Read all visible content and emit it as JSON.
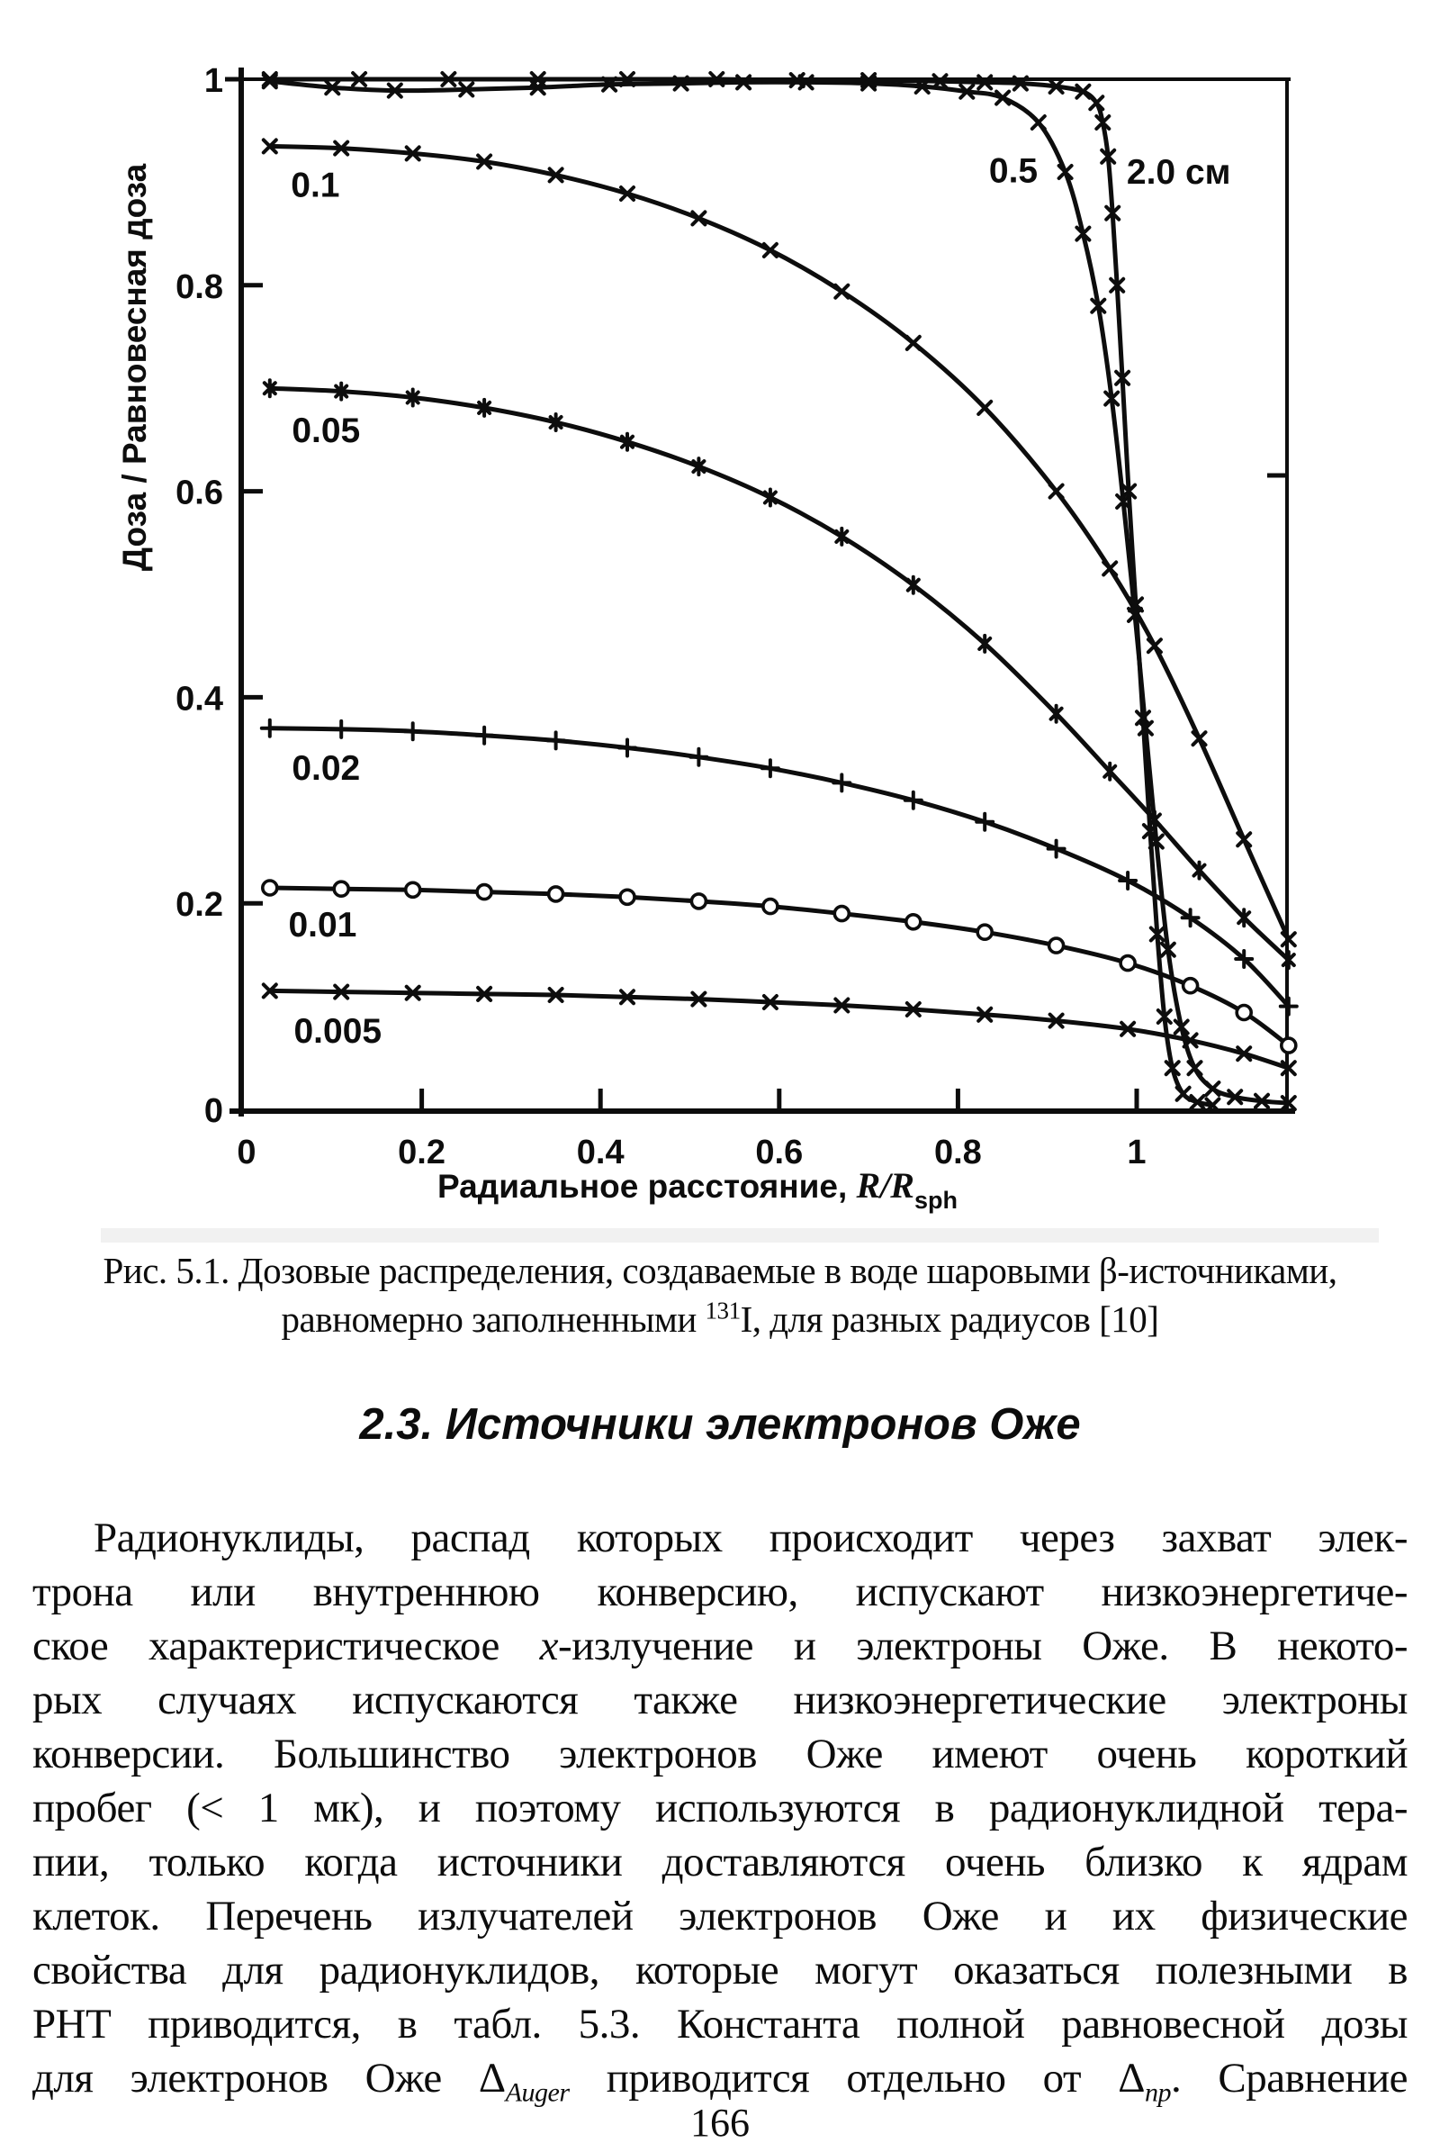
{
  "chart_data": {
    "type": "line",
    "title": "",
    "ylabel": "Доза / Равновесная доза",
    "xlabel_text": "Радиальное расстояние, ",
    "xlabel_math": "R/R",
    "xlabel_sub": "sph",
    "xlim": [
      0,
      1.17
    ],
    "ylim": [
      0,
      1.0
    ],
    "grid": false,
    "legend_position": "inline-labels",
    "x_ticks": [
      {
        "v": 0,
        "label": "0"
      },
      {
        "v": 0.2,
        "label": "0.2"
      },
      {
        "v": 0.4,
        "label": "0.4"
      },
      {
        "v": 0.6,
        "label": "0.6"
      },
      {
        "v": 0.8,
        "label": "0.8"
      },
      {
        "v": 1,
        "label": "1"
      }
    ],
    "y_ticks": [
      {
        "v": 0,
        "label": "0"
      },
      {
        "v": 0.2,
        "label": "0.2"
      },
      {
        "v": 0.4,
        "label": "0.4"
      },
      {
        "v": 0.6,
        "label": "0.6"
      },
      {
        "v": 0.8,
        "label": "0.8"
      },
      {
        "v": 1,
        "label": "1"
      }
    ],
    "series": [
      {
        "name": "0.005",
        "marker": "x",
        "points": [
          [
            0.03,
            0.115
          ],
          [
            0.11,
            0.114
          ],
          [
            0.19,
            0.113
          ],
          [
            0.27,
            0.112
          ],
          [
            0.35,
            0.111
          ],
          [
            0.43,
            0.109
          ],
          [
            0.51,
            0.107
          ],
          [
            0.59,
            0.104
          ],
          [
            0.67,
            0.101
          ],
          [
            0.75,
            0.097
          ],
          [
            0.83,
            0.092
          ],
          [
            0.91,
            0.086
          ],
          [
            0.99,
            0.078
          ],
          [
            1.06,
            0.067
          ],
          [
            1.12,
            0.054
          ],
          [
            1.17,
            0.04
          ]
        ]
      },
      {
        "name": "0.01",
        "marker": "circle",
        "points": [
          [
            0.03,
            0.215
          ],
          [
            0.11,
            0.214
          ],
          [
            0.19,
            0.213
          ],
          [
            0.27,
            0.211
          ],
          [
            0.35,
            0.209
          ],
          [
            0.43,
            0.206
          ],
          [
            0.51,
            0.202
          ],
          [
            0.59,
            0.197
          ],
          [
            0.67,
            0.19
          ],
          [
            0.75,
            0.182
          ],
          [
            0.83,
            0.172
          ],
          [
            0.91,
            0.159
          ],
          [
            0.99,
            0.142
          ],
          [
            1.06,
            0.12
          ],
          [
            1.12,
            0.094
          ],
          [
            1.17,
            0.062
          ]
        ]
      },
      {
        "name": "0.02",
        "marker": "plus",
        "points": [
          [
            0.03,
            0.37
          ],
          [
            0.11,
            0.369
          ],
          [
            0.19,
            0.367
          ],
          [
            0.27,
            0.363
          ],
          [
            0.35,
            0.358
          ],
          [
            0.43,
            0.351
          ],
          [
            0.51,
            0.342
          ],
          [
            0.59,
            0.331
          ],
          [
            0.67,
            0.317
          ],
          [
            0.75,
            0.3
          ],
          [
            0.83,
            0.279
          ],
          [
            0.91,
            0.253
          ],
          [
            0.99,
            0.222
          ],
          [
            1.06,
            0.186
          ],
          [
            1.12,
            0.146
          ],
          [
            1.17,
            0.1
          ]
        ]
      },
      {
        "name": "0.05",
        "marker": "asterisk",
        "points": [
          [
            0.03,
            0.7
          ],
          [
            0.11,
            0.697
          ],
          [
            0.19,
            0.691
          ],
          [
            0.27,
            0.681
          ],
          [
            0.35,
            0.667
          ],
          [
            0.43,
            0.648
          ],
          [
            0.51,
            0.624
          ],
          [
            0.59,
            0.594
          ],
          [
            0.67,
            0.556
          ],
          [
            0.75,
            0.509
          ],
          [
            0.83,
            0.452
          ],
          [
            0.91,
            0.384
          ],
          [
            0.97,
            0.328
          ],
          [
            1.02,
            0.281
          ],
          [
            1.07,
            0.232
          ],
          [
            1.12,
            0.186
          ],
          [
            1.17,
            0.145
          ]
        ]
      },
      {
        "name": "0.1",
        "marker": "x",
        "points": [
          [
            0.03,
            0.935
          ],
          [
            0.11,
            0.933
          ],
          [
            0.19,
            0.928
          ],
          [
            0.27,
            0.92
          ],
          [
            0.35,
            0.907
          ],
          [
            0.43,
            0.889
          ],
          [
            0.51,
            0.865
          ],
          [
            0.59,
            0.834
          ],
          [
            0.67,
            0.794
          ],
          [
            0.75,
            0.744
          ],
          [
            0.83,
            0.681
          ],
          [
            0.91,
            0.6
          ],
          [
            0.97,
            0.525
          ],
          [
            1.02,
            0.45
          ],
          [
            1.07,
            0.36
          ],
          [
            1.12,
            0.262
          ],
          [
            1.17,
            0.165
          ]
        ]
      },
      {
        "name": "0.5",
        "marker": "x",
        "points": [
          [
            0.03,
            0.998
          ],
          [
            0.1,
            0.992
          ],
          [
            0.17,
            0.989
          ],
          [
            0.25,
            0.99
          ],
          [
            0.33,
            0.992
          ],
          [
            0.41,
            0.995
          ],
          [
            0.49,
            0.996
          ],
          [
            0.56,
            0.997
          ],
          [
            0.63,
            0.997
          ],
          [
            0.7,
            0.996
          ],
          [
            0.76,
            0.993
          ],
          [
            0.81,
            0.988
          ],
          [
            0.85,
            0.982
          ],
          [
            0.89,
            0.958
          ],
          [
            0.92,
            0.91
          ],
          [
            0.94,
            0.85
          ],
          [
            0.957,
            0.78
          ],
          [
            0.972,
            0.69
          ],
          [
            0.985,
            0.59
          ],
          [
            0.998,
            0.48
          ],
          [
            1.01,
            0.37
          ],
          [
            1.022,
            0.26
          ],
          [
            1.035,
            0.155
          ],
          [
            1.05,
            0.08
          ],
          [
            1.065,
            0.04
          ],
          [
            1.085,
            0.02
          ],
          [
            1.11,
            0.012
          ],
          [
            1.14,
            0.008
          ],
          [
            1.17,
            0.006
          ]
        ]
      },
      {
        "name": "2.0 см",
        "marker": "x",
        "points": [
          [
            0.03,
            1.0
          ],
          [
            0.13,
            1.0
          ],
          [
            0.23,
            1.0
          ],
          [
            0.33,
            1.0
          ],
          [
            0.43,
            1.0
          ],
          [
            0.53,
            1.0
          ],
          [
            0.62,
            0.999
          ],
          [
            0.7,
            0.999
          ],
          [
            0.78,
            0.998
          ],
          [
            0.83,
            0.997
          ],
          [
            0.87,
            0.996
          ],
          [
            0.91,
            0.993
          ],
          [
            0.94,
            0.988
          ],
          [
            0.955,
            0.977
          ],
          [
            0.962,
            0.958
          ],
          [
            0.968,
            0.925
          ],
          [
            0.973,
            0.87
          ],
          [
            0.978,
            0.8
          ],
          [
            0.984,
            0.71
          ],
          [
            0.991,
            0.6
          ],
          [
            0.999,
            0.49
          ],
          [
            1.007,
            0.38
          ],
          [
            1.015,
            0.27
          ],
          [
            1.023,
            0.17
          ],
          [
            1.031,
            0.09
          ],
          [
            1.04,
            0.04
          ],
          [
            1.052,
            0.015
          ],
          [
            1.068,
            0.007
          ],
          [
            1.085,
            0.004
          ]
        ]
      }
    ],
    "curve_labels": [
      {
        "text": "0.1",
        "x": 0.081,
        "v": 0.898
      },
      {
        "text": "0.05",
        "x": 0.093,
        "v": 0.66
      },
      {
        "text": "0.02",
        "x": 0.093,
        "v": 0.332
      },
      {
        "text": "0.01",
        "x": 0.089,
        "v": 0.18
      },
      {
        "text": "0.005",
        "x": 0.106,
        "v": 0.077
      },
      {
        "text": "0.5",
        "x": 0.862,
        "v": 0.912
      },
      {
        "text": "2.0 см",
        "x": 1.047,
        "v": 0.911
      }
    ]
  },
  "caption": {
    "line1": "Рис. 5.1. Дозовые распределения, создаваемые в воде шаровыми β-источниками,",
    "line2_segments": [
      {
        "t": "равномерно заполненными "
      },
      {
        "t": "131",
        "style": "sup"
      },
      {
        "t": "I, для разных радиусов [10]"
      }
    ]
  },
  "section_heading": "2.3. Источники электронов Оже",
  "body": {
    "lines": [
      [
        {
          "t": "Радионуклиды, распад которых происходит через захват элек-"
        }
      ],
      [
        {
          "t": "трона или внутреннюю конверсию, испускают низкоэнергетиче-"
        }
      ],
      [
        {
          "t": "ское характеристическое "
        },
        {
          "t": "х",
          "style": "i"
        },
        {
          "t": "-излучение и электроны Оже. В некото-"
        }
      ],
      [
        {
          "t": "рых случаях испускаются также низкоэнергетические электроны"
        }
      ],
      [
        {
          "t": "конверсии. Большинство электронов Оже имеют очень короткий"
        }
      ],
      [
        {
          "t": "пробег (< 1 мк), и поэтому используются в радионуклидной тера-"
        }
      ],
      [
        {
          "t": "пии, только когда источники доставляются очень близко к ядрам"
        }
      ],
      [
        {
          "t": "клеток. Перечень излучателей электронов Оже и их физические"
        }
      ],
      [
        {
          "t": "свойства для радионуклидов, которые могут оказаться полезными в"
        }
      ],
      [
        {
          "t": "РНТ приводится, в табл. 5.3. Константа полной равновесной дозы"
        }
      ],
      [
        {
          "t": "для электронов Оже "
        },
        {
          "t": "Δ"
        },
        {
          "t": "Auger",
          "style": "subi"
        },
        {
          "t": " приводится отдельно от "
        },
        {
          "t": "Δ"
        },
        {
          "t": "np",
          "style": "subi"
        },
        {
          "t": ". Сравнение"
        }
      ]
    ]
  },
  "page_number": "166"
}
